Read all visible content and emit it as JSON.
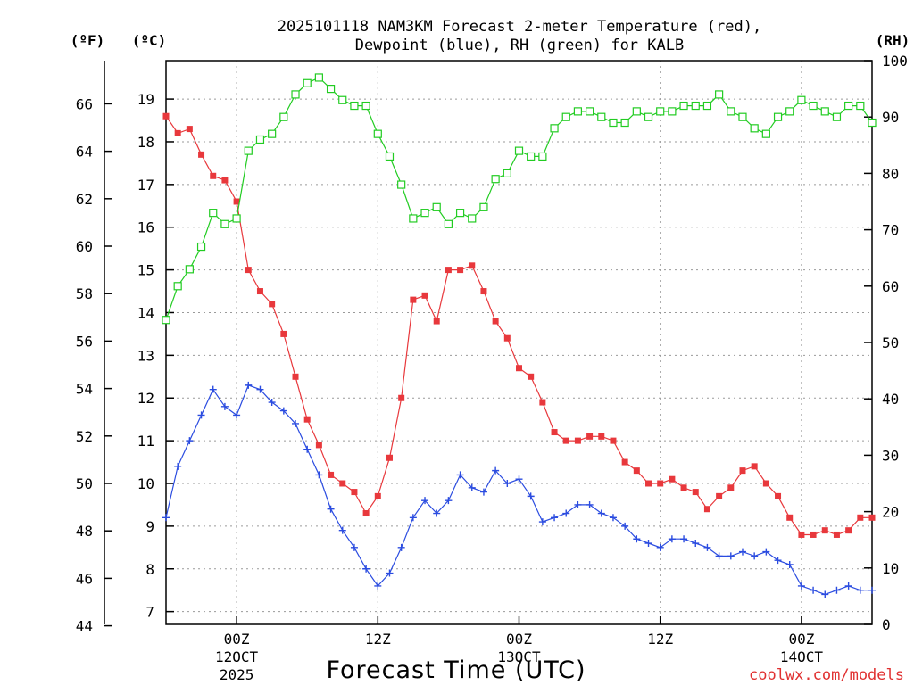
{
  "chart_data": {
    "type": "line",
    "title_line1": "2025101118 NAM3KM Forecast 2-meter Temperature (red),",
    "title_line2": "Dewpoint (blue), RH (green) for KALB",
    "unit_f": "(ºF)",
    "unit_c": "(ºC)",
    "unit_rh": "(RH)",
    "xlabel": "Forecast Time (UTC)",
    "credit": "coolwx.com/models",
    "x_range_hours": [
      0,
      60
    ],
    "ylim_c": [
      6.7,
      19.9
    ],
    "ylim_rh": [
      0,
      100
    ],
    "f_ticks": [
      44,
      46,
      48,
      50,
      52,
      54,
      56,
      58,
      60,
      62,
      64,
      66
    ],
    "c_ticks": [
      7,
      8,
      9,
      10,
      11,
      12,
      13,
      14,
      15,
      16,
      17,
      18,
      19
    ],
    "rh_ticks": [
      0,
      10,
      20,
      30,
      40,
      50,
      60,
      70,
      80,
      90,
      100
    ],
    "x_ticks": [
      {
        "hour": 6,
        "line1": "00Z",
        "line2": "12OCT",
        "line3": "2025"
      },
      {
        "hour": 18,
        "line1": "12Z",
        "line2": "",
        "line3": ""
      },
      {
        "hour": 30,
        "line1": "00Z",
        "line2": "13OCT",
        "line3": ""
      },
      {
        "hour": 42,
        "line1": "12Z",
        "line2": "",
        "line3": ""
      },
      {
        "hour": 54,
        "line1": "00Z",
        "line2": "14OCT",
        "line3": ""
      }
    ],
    "hours": [
      0,
      1,
      2,
      3,
      4,
      5,
      6,
      7,
      8,
      9,
      10,
      11,
      12,
      13,
      14,
      15,
      16,
      17,
      18,
      19,
      20,
      21,
      22,
      23,
      24,
      25,
      26,
      27,
      28,
      29,
      30,
      31,
      32,
      33,
      34,
      35,
      36,
      37,
      38,
      39,
      40,
      41,
      42,
      43,
      44,
      45,
      46,
      47,
      48,
      49,
      50,
      51,
      52,
      53,
      54,
      55,
      56,
      57,
      58,
      59,
      60
    ],
    "series": [
      {
        "name": "Temperature",
        "color": "#e8383c",
        "marker": "filled-square",
        "axis": "C",
        "values": [
          18.6,
          18.2,
          18.3,
          17.7,
          17.2,
          17.1,
          16.6,
          15.0,
          14.5,
          14.2,
          13.5,
          12.5,
          11.5,
          10.9,
          10.2,
          10.0,
          9.8,
          9.3,
          9.7,
          10.6,
          12.0,
          14.3,
          14.4,
          13.8,
          15.0,
          15.0,
          15.1,
          14.5,
          13.8,
          13.4,
          12.7,
          12.5,
          11.9,
          11.2,
          11.0,
          11.0,
          11.1,
          11.1,
          11.0,
          10.5,
          10.3,
          10.0,
          10.0,
          10.1,
          9.9,
          9.8,
          9.4,
          9.7,
          9.9,
          10.3,
          10.4,
          10.0,
          9.7,
          9.2,
          8.8,
          8.8,
          8.9,
          8.8,
          8.9,
          9.2,
          9.2
        ]
      },
      {
        "name": "Dewpoint",
        "color": "#2b4ce0",
        "marker": "plus",
        "axis": "C",
        "values": [
          9.2,
          10.4,
          11.0,
          11.6,
          12.2,
          11.8,
          11.6,
          12.3,
          12.2,
          11.9,
          11.7,
          11.4,
          10.8,
          10.2,
          9.4,
          8.9,
          8.5,
          8.0,
          7.6,
          7.9,
          8.5,
          9.2,
          9.6,
          9.3,
          9.6,
          10.2,
          9.9,
          9.8,
          10.3,
          10.0,
          10.1,
          9.7,
          9.1,
          9.2,
          9.3,
          9.5,
          9.5,
          9.3,
          9.2,
          9.0,
          8.7,
          8.6,
          8.5,
          8.7,
          8.7,
          8.6,
          8.5,
          8.3,
          8.3,
          8.4,
          8.3,
          8.4,
          8.2,
          8.1,
          7.6,
          7.5,
          7.4,
          7.5,
          7.6,
          7.5,
          7.5
        ]
      },
      {
        "name": "RH",
        "color": "#22cc22",
        "marker": "open-square",
        "axis": "RH",
        "values": [
          54,
          60,
          63,
          67,
          73,
          71,
          72,
          84,
          86,
          87,
          90,
          94,
          96,
          97,
          95,
          93,
          92,
          92,
          87,
          83,
          78,
          72,
          73,
          74,
          71,
          73,
          72,
          74,
          79,
          80,
          84,
          83,
          83,
          88,
          90,
          91,
          91,
          90,
          89,
          89,
          91,
          90,
          91,
          91,
          92,
          92,
          92,
          94,
          91,
          90,
          88,
          87,
          90,
          91,
          93,
          92,
          91,
          90,
          92,
          92,
          89
        ]
      }
    ]
  }
}
